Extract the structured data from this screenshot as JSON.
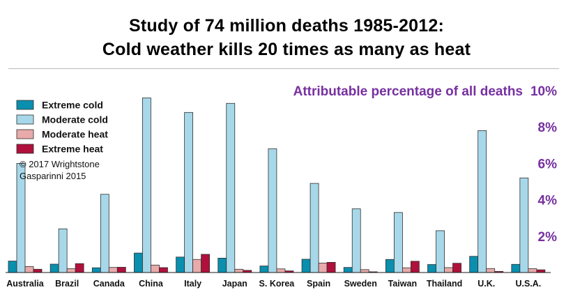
{
  "title_lines": [
    "Study of 74 million deaths 1985-2012:",
    "Cold weather kills 20 times as many as heat"
  ],
  "credit_lines": [
    "© 2017 Wrightstone",
    "Gasparinni 2015"
  ],
  "colors": {
    "extreme_cold": "#0a8fae",
    "moderate_cold": "#a7d8ea",
    "moderate_heat": "#e8aaaa",
    "extreme_heat": "#b0103b",
    "axis_text": "#7630a0",
    "bar_stroke": "#2f2f2f"
  },
  "chart_data": {
    "type": "bar",
    "ylabel": "Attributable percentage of all deaths",
    "ylim": [
      0,
      10
    ],
    "y_ticks": [
      {
        "value": 2,
        "label": "2%"
      },
      {
        "value": 4,
        "label": "4%"
      },
      {
        "value": 6,
        "label": "6%"
      },
      {
        "value": 8,
        "label": "8%"
      },
      {
        "value": 10,
        "label": "10%"
      }
    ],
    "legend_position": "top-left",
    "grid": false,
    "categories": [
      "Australia",
      "Brazil",
      "Canada",
      "China",
      "Italy",
      "Japan",
      "S. Korea",
      "Spain",
      "Sweden",
      "Taiwan",
      "Thailand",
      "U.K.",
      "U.S.A."
    ],
    "series": [
      {
        "key": "extreme_cold",
        "name": "Extreme cold",
        "values": [
          0.63,
          0.46,
          0.26,
          1.07,
          0.85,
          0.79,
          0.36,
          0.73,
          0.28,
          0.72,
          0.44,
          0.89,
          0.45
        ]
      },
      {
        "key": "moderate_cold",
        "name": "Moderate cold",
        "values": [
          6.0,
          2.4,
          4.3,
          9.6,
          8.8,
          9.3,
          6.8,
          4.9,
          3.5,
          3.3,
          2.3,
          7.8,
          5.2
        ]
      },
      {
        "key": "moderate_heat",
        "name": "Moderate heat",
        "values": [
          0.33,
          0.21,
          0.28,
          0.41,
          0.72,
          0.18,
          0.2,
          0.52,
          0.16,
          0.26,
          0.27,
          0.22,
          0.21
        ]
      },
      {
        "key": "extreme_heat",
        "name": "Extreme heat",
        "values": [
          0.18,
          0.49,
          0.29,
          0.27,
          1.0,
          0.12,
          0.09,
          0.56,
          0.04,
          0.62,
          0.51,
          0.06,
          0.15
        ]
      }
    ]
  }
}
